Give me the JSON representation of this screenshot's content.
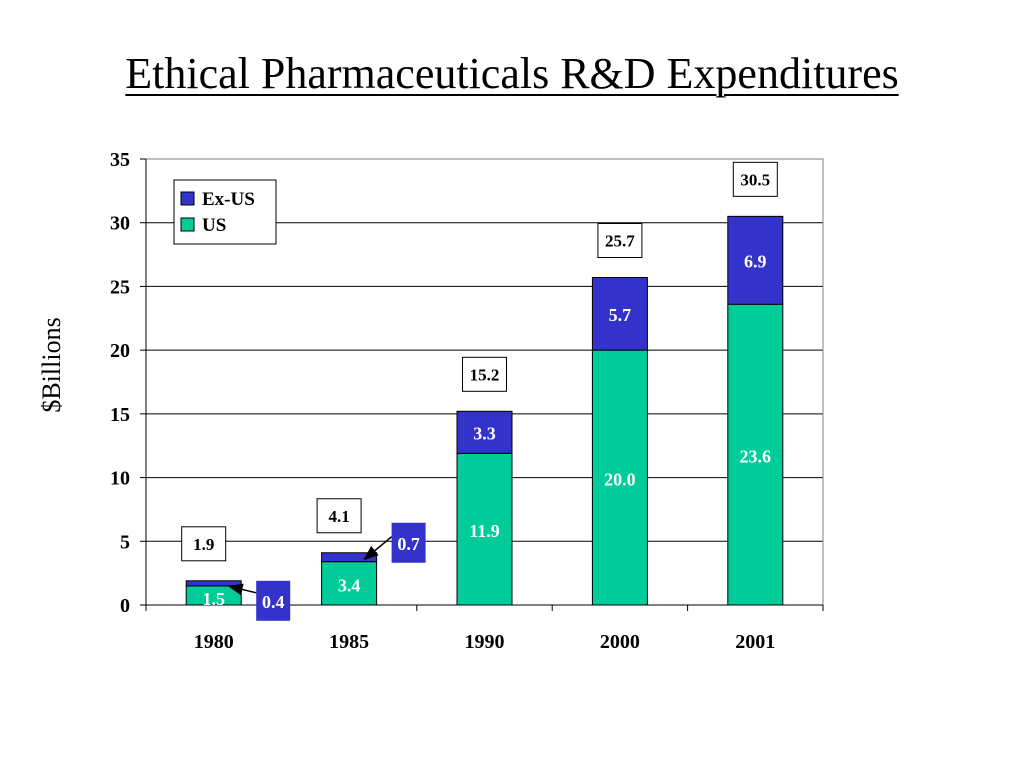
{
  "title": "Ethical Pharmaceuticals R&D Expenditures",
  "chart_data": {
    "type": "bar",
    "stacked": true,
    "categories": [
      "1980",
      "1985",
      "1990",
      "2000",
      "2001"
    ],
    "series": [
      {
        "name": "US",
        "values": [
          1.5,
          3.4,
          11.9,
          20.0,
          23.6
        ],
        "labels": [
          "1.5",
          "3.4",
          "11.9",
          "20.0",
          "23.6"
        ],
        "color": "#00cc99"
      },
      {
        "name": "Ex-US",
        "values": [
          0.4,
          0.7,
          3.3,
          5.7,
          6.9
        ],
        "labels": [
          "0.4",
          "0.7",
          "3.3",
          "5.7",
          "6.9"
        ],
        "color": "#3333cc"
      }
    ],
    "totals": [
      "1.9",
      "4.1",
      "15.2",
      "25.7",
      "30.5"
    ],
    "ylabel": "$Billions",
    "xlabel": "",
    "ylim": [
      0,
      35
    ],
    "yticks": [
      0,
      5,
      10,
      15,
      20,
      25,
      30,
      35
    ],
    "grid": true,
    "legend": {
      "position": "top-left",
      "entries": [
        "Ex-US",
        "US"
      ]
    }
  }
}
